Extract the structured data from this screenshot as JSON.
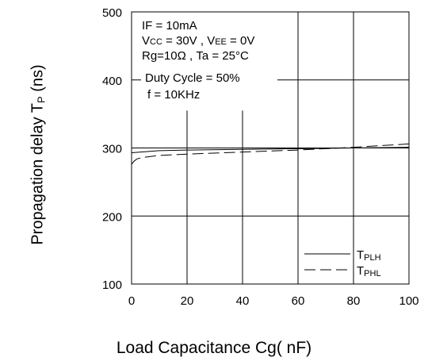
{
  "chart_data": {
    "type": "line",
    "title": "",
    "xlabel": "Load Capacitance Cg( nF)",
    "ylabel_main": "Propagation delay T",
    "ylabel_sub": "P",
    "ylabel_unit": " (ns)",
    "xlim": [
      0,
      100
    ],
    "ylim": [
      100,
      500
    ],
    "x_ticks": [
      0,
      20,
      40,
      60,
      80,
      100
    ],
    "y_ticks": [
      100,
      200,
      300,
      400,
      500
    ],
    "grid": true,
    "conditions": [
      "IF = 10mA",
      "Vcc = 30V , VEE = 0V",
      "Rg=10Ω , Ta = 25°C",
      "Duty Cycle = 50%",
      "f = 10KHz"
    ],
    "legend_position": "bottom-right",
    "series": [
      {
        "name": "TPLH",
        "name_main": "T",
        "name_sub": "PLH",
        "style": "solid",
        "x": [
          0,
          10,
          20,
          40,
          60,
          80,
          100
        ],
        "y": [
          293,
          296,
          297,
          298,
          299,
          300,
          301
        ]
      },
      {
        "name": "TPHL",
        "name_main": "T",
        "name_sub": "PHL",
        "style": "dashed",
        "x": [
          0,
          1,
          2,
          4,
          6,
          10,
          20,
          40,
          60,
          80,
          100
        ],
        "y": [
          276,
          281,
          284,
          286,
          287,
          289,
          291,
          294,
          297,
          301,
          306
        ]
      }
    ]
  }
}
